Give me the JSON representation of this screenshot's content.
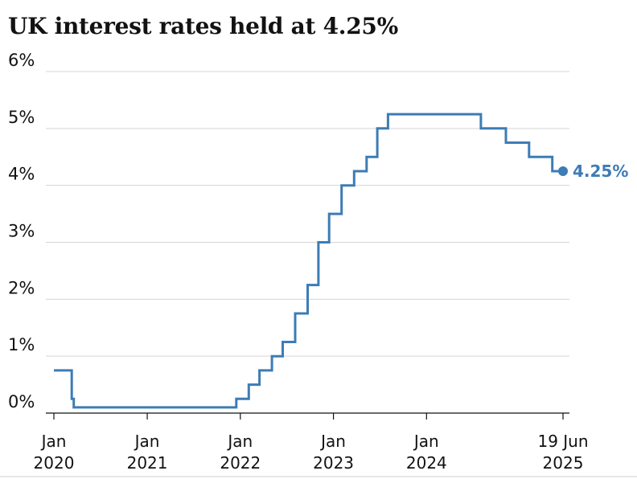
{
  "title": "UK interest rates held at 4.25%",
  "colors": {
    "series": "#3d7cb5",
    "grid": "#d5d5d5",
    "text": "#121212"
  },
  "chart_data": {
    "type": "line",
    "step": true,
    "title": "UK interest rates held at 4.25%",
    "xlabel": "",
    "ylabel": "",
    "ylim": [
      0,
      6
    ],
    "xlim": [
      "2020-01-01",
      "2025-06-19"
    ],
    "grid": true,
    "y_ticks": [
      {
        "value": 0,
        "label": "0%"
      },
      {
        "value": 1,
        "label": "1%"
      },
      {
        "value": 2,
        "label": "2%"
      },
      {
        "value": 3,
        "label": "3%"
      },
      {
        "value": 4,
        "label": "4%"
      },
      {
        "value": 5,
        "label": "5%"
      },
      {
        "value": 6,
        "label": "6%"
      }
    ],
    "x_ticks": [
      {
        "date": "2020-01-01",
        "line1": "Jan",
        "line2": "2020"
      },
      {
        "date": "2021-01-01",
        "line1": "Jan",
        "line2": "2021"
      },
      {
        "date": "2022-01-01",
        "line1": "Jan",
        "line2": "2022"
      },
      {
        "date": "2023-01-01",
        "line1": "Jan",
        "line2": "2023"
      },
      {
        "date": "2024-01-01",
        "line1": "Jan",
        "line2": "2024"
      },
      {
        "date": "2025-06-19",
        "line1": "19 Jun",
        "line2": "2025"
      }
    ],
    "series": [
      {
        "points": [
          {
            "date": "2020-01-01",
            "value": 0.75
          },
          {
            "date": "2020-03-11",
            "value": 0.25
          },
          {
            "date": "2020-03-19",
            "value": 0.1
          },
          {
            "date": "2021-12-16",
            "value": 0.25
          },
          {
            "date": "2022-02-03",
            "value": 0.5
          },
          {
            "date": "2022-03-17",
            "value": 0.75
          },
          {
            "date": "2022-05-05",
            "value": 1.0
          },
          {
            "date": "2022-06-16",
            "value": 1.25
          },
          {
            "date": "2022-08-04",
            "value": 1.75
          },
          {
            "date": "2022-09-22",
            "value": 2.25
          },
          {
            "date": "2022-11-03",
            "value": 3.0
          },
          {
            "date": "2022-12-15",
            "value": 3.5
          },
          {
            "date": "2023-02-02",
            "value": 4.0
          },
          {
            "date": "2023-03-23",
            "value": 4.25
          },
          {
            "date": "2023-05-11",
            "value": 4.5
          },
          {
            "date": "2023-06-22",
            "value": 5.0
          },
          {
            "date": "2023-08-03",
            "value": 5.25
          },
          {
            "date": "2024-08-01",
            "value": 5.0
          },
          {
            "date": "2024-11-07",
            "value": 4.75
          },
          {
            "date": "2025-02-06",
            "value": 4.5
          },
          {
            "date": "2025-05-08",
            "value": 4.25
          },
          {
            "date": "2025-06-19",
            "value": 4.25
          }
        ]
      }
    ],
    "end_label": "4.25%"
  }
}
